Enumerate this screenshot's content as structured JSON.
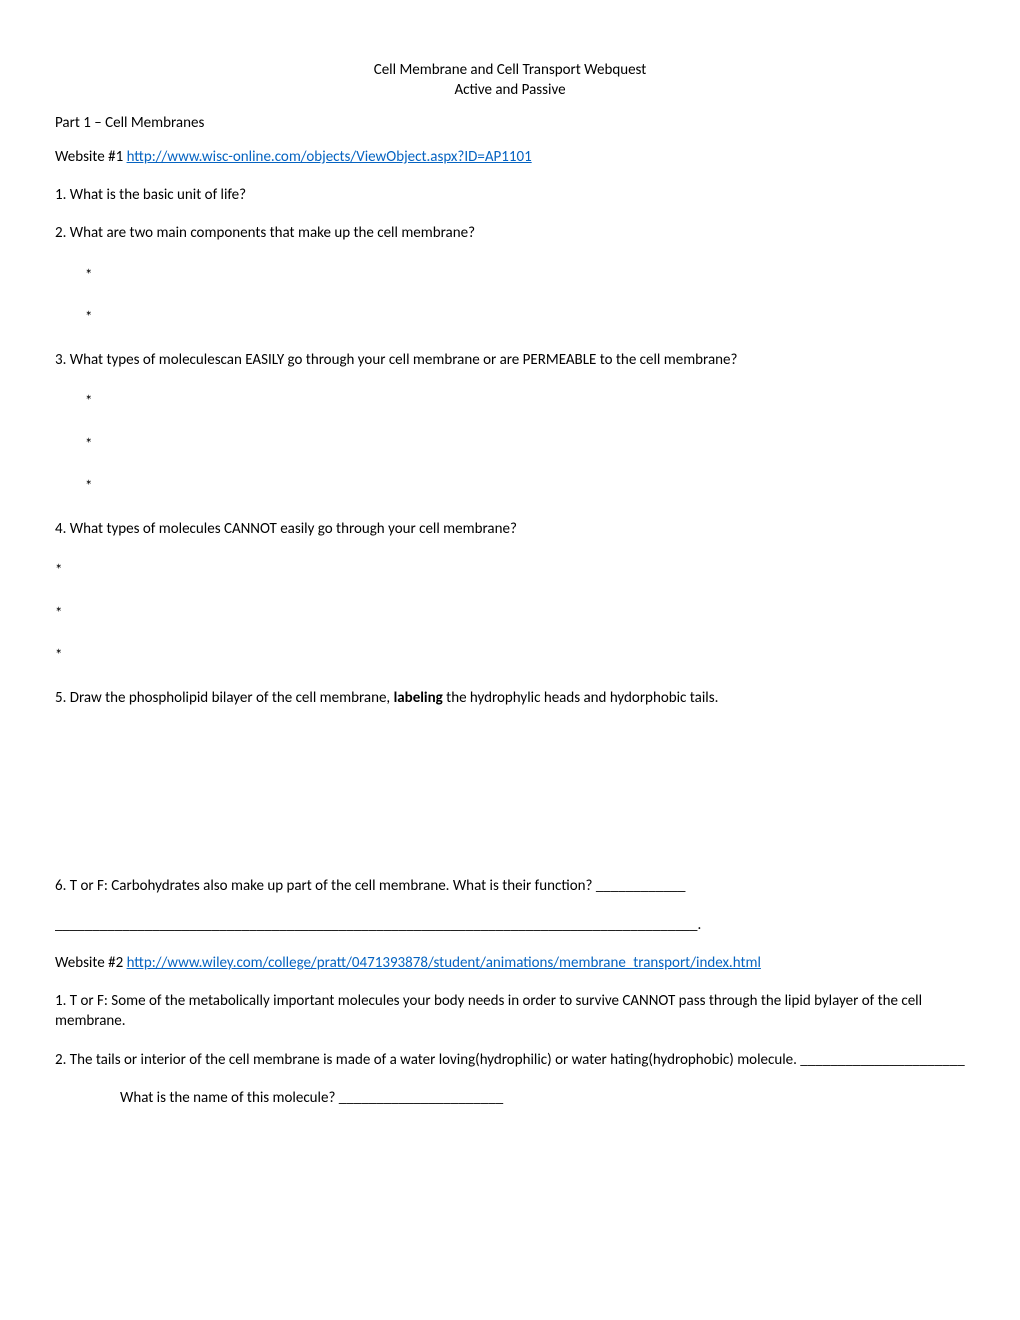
{
  "title": "Cell Membrane and Cell Transport Webquest",
  "subtitle": "Active and Passive",
  "part1_heading": "Part 1 – Cell Membranes",
  "website1_label": "Website #1 ",
  "website1_url": "http://www.wisc-online.com/objects/ViewObject.aspx?ID=AP1101",
  "q1": "1. What is the basic unit of life?",
  "q2": "2. What are two main components that make up the cell membrane?",
  "q3": "3. What types of moleculescan EASILY go through your cell membrane or are PERMEABLE to the cell membrane?",
  "q4": "4. What types of molecules CANNOT easily go through your cell membrane?",
  "q5_pre": "5. Draw the phospholipid bilayer of the cell membrane, ",
  "q5_bold": "labeling",
  "q5_post": " the hydrophylic heads and hydorphobic tails.",
  "q6": "6. T or F: Carbohydrates also make up part of the cell membrane.  What is their function? ____________",
  "q6_blank": "______________________________________________________________________________________.",
  "website2_label": "Website #2 ",
  "website2_url": "http://www.wiley.com/college/pratt/0471393878/student/animations/membrane_transport/index.html",
  "w2_q1": "1. T or F: Some of the metabolically important molecules your body needs in order to survive CANNOT pass through the lipid bylayer of the cell membrane.",
  "w2_q2": "2. The tails or interior of the cell membrane is made of a water loving(hydrophilic) or water hating(hydrophobic) molecule. ______________________",
  "w2_q2_sub": "What is the name of this molecule? ______________________",
  "asterisk": "*"
}
